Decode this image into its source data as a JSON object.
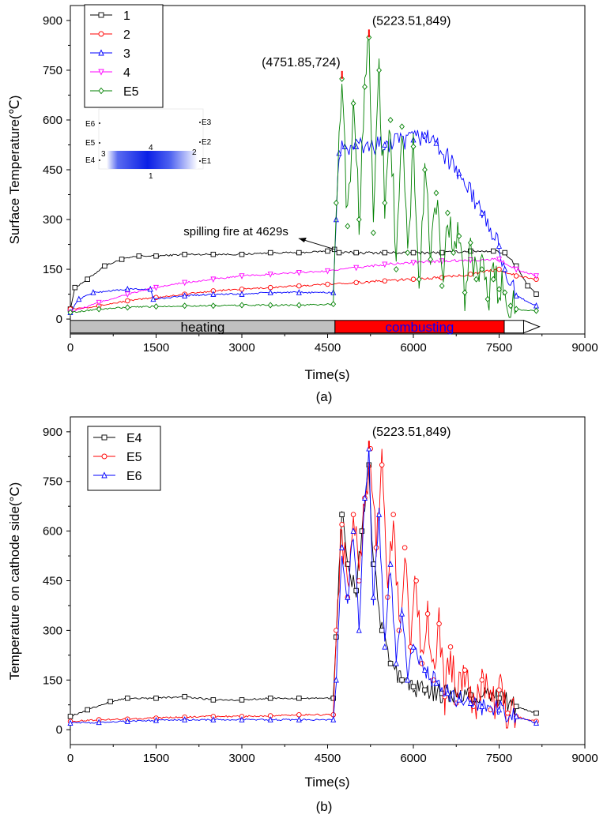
{
  "chart_data": [
    {
      "panel_label": "(a)",
      "type": "line",
      "xlabel": "Time(s)",
      "ylabel": "Surface Temperature(℃)",
      "xlim": [
        0,
        9000
      ],
      "ylim": [
        -45,
        945
      ],
      "xticks": [
        "0",
        "1500",
        "3000",
        "4500",
        "6000",
        "7500",
        "9000"
      ],
      "yticks": [
        "0",
        "150",
        "300",
        "450",
        "600",
        "750",
        "900"
      ],
      "grid": false,
      "legend": "top-left",
      "series": [
        {
          "name": "1",
          "color": "#000000",
          "marker": "square",
          "x": [
            0,
            80,
            300,
            600,
            900,
            1200,
            1500,
            2000,
            2500,
            3000,
            3500,
            4000,
            4500,
            4620,
            4700,
            5000,
            5500,
            6000,
            6500,
            7000,
            7400,
            7600,
            7800,
            8000,
            8150
          ],
          "y": [
            30,
            95,
            120,
            160,
            180,
            190,
            190,
            195,
            195,
            195,
            200,
            200,
            205,
            210,
            200,
            200,
            200,
            200,
            200,
            205,
            205,
            200,
            160,
            100,
            75
          ]
        },
        {
          "name": "2",
          "color": "#ff0000",
          "marker": "circle",
          "x": [
            0,
            500,
            1000,
            1500,
            2000,
            2500,
            3000,
            3500,
            4000,
            4500,
            5000,
            5500,
            6000,
            6500,
            7000,
            7500,
            7800,
            8150
          ],
          "y": [
            30,
            40,
            55,
            65,
            75,
            85,
            90,
            95,
            100,
            105,
            110,
            115,
            120,
            125,
            135,
            150,
            130,
            120
          ]
        },
        {
          "name": "3",
          "color": "#0000ff",
          "marker": "triangle-up",
          "x": [
            0,
            150,
            400,
            1000,
            1400,
            1450,
            2000,
            2500,
            3000,
            3500,
            4000,
            4600,
            4650,
            4700,
            4800,
            5000,
            5500,
            6000,
            6200,
            6400,
            6800,
            7200,
            7500,
            7600,
            7800,
            8150
          ],
          "y": [
            20,
            60,
            80,
            90,
            90,
            60,
            70,
            75,
            75,
            80,
            80,
            80,
            300,
            500,
            520,
            520,
            525,
            540,
            555,
            530,
            440,
            320,
            220,
            150,
            70,
            40
          ]
        },
        {
          "name": "4",
          "color": "#ff00ff",
          "marker": "triangle-down",
          "x": [
            0,
            500,
            1000,
            1500,
            2000,
            2500,
            3000,
            3500,
            4000,
            4500,
            5000,
            5500,
            6000,
            6500,
            7000,
            7500,
            7800,
            8150
          ],
          "y": [
            20,
            50,
            75,
            95,
            110,
            120,
            130,
            135,
            140,
            145,
            155,
            165,
            170,
            175,
            178,
            180,
            150,
            130
          ]
        },
        {
          "name": "E5",
          "color": "#008000",
          "marker": "diamond",
          "x": [
            0,
            500,
            1000,
            1500,
            2000,
            2500,
            3000,
            3500,
            4000,
            4600,
            4650,
            4750,
            4850,
            4950,
            5050,
            5150,
            5223,
            5300,
            5400,
            5500,
            5600,
            5700,
            5800,
            5900,
            6000,
            6100,
            6200,
            6300,
            6400,
            6500,
            6600,
            6700,
            6800,
            6900,
            7000,
            7100,
            7200,
            7300,
            7400,
            7500,
            7600,
            7700,
            7800,
            8150
          ],
          "y": [
            20,
            30,
            35,
            38,
            40,
            40,
            42,
            42,
            42,
            45,
            350,
            724,
            280,
            650,
            300,
            700,
            849,
            260,
            750,
            350,
            600,
            150,
            580,
            200,
            520,
            120,
            450,
            180,
            380,
            100,
            320,
            200,
            250,
            80,
            230,
            120,
            150,
            60,
            120,
            90,
            80,
            40,
            30,
            25
          ]
        }
      ],
      "annotations": [
        {
          "text": "(4751.85,724)",
          "x": 4751.85,
          "y": 724
        },
        {
          "text": "(5223.51,849)",
          "x": 5223.51,
          "y": 849
        },
        {
          "text": "spilling fire at 4629s",
          "x": 4629,
          "y": 205
        }
      ],
      "phase_bar": [
        {
          "label": "heating",
          "start": 0,
          "end": 4629,
          "color": "#c0c0c0",
          "text_color": "#000000"
        },
        {
          "label": "combusting",
          "start": 4629,
          "end": 7590,
          "color": "#ff0000",
          "text_color": "#0000ff"
        },
        {
          "label": "",
          "start": 7590,
          "end": 8150,
          "color": "#ffffff",
          "text_color": "#000000"
        }
      ],
      "inset": {
        "labels": [
          "E6",
          "E5",
          "E4",
          "E3",
          "E2",
          "E1",
          "1",
          "2",
          "3",
          "4"
        ]
      }
    },
    {
      "panel_label": "(b)",
      "type": "line",
      "xlabel": "Time(s)",
      "ylabel": "Temperature on cathode side(°C)",
      "xlim": [
        0,
        9000
      ],
      "ylim": [
        -45,
        945
      ],
      "xticks": [
        "0",
        "1500",
        "3000",
        "4500",
        "6000",
        "7500",
        "9000"
      ],
      "yticks": [
        "0",
        "150",
        "300",
        "450",
        "600",
        "750",
        "900"
      ],
      "grid": false,
      "legend": "top-left",
      "series": [
        {
          "name": "E4",
          "color": "#000000",
          "marker": "square",
          "x": [
            0,
            300,
            700,
            1000,
            1500,
            2000,
            2500,
            3000,
            3500,
            4000,
            4600,
            4650,
            4750,
            4850,
            5000,
            5100,
            5223,
            5300,
            5450,
            5600,
            5800,
            6000,
            6200,
            6500,
            7000,
            7500,
            7800,
            8150
          ],
          "y": [
            40,
            60,
            85,
            95,
            95,
            100,
            90,
            90,
            95,
            95,
            95,
            280,
            650,
            500,
            420,
            600,
            800,
            500,
            300,
            200,
            150,
            130,
            120,
            110,
            105,
            95,
            70,
            50
          ]
        },
        {
          "name": "E5",
          "color": "#ff0000",
          "marker": "circle",
          "x": [
            0,
            500,
            1000,
            1500,
            2000,
            2500,
            3000,
            3500,
            4000,
            4600,
            4650,
            4750,
            4850,
            4950,
            5050,
            5150,
            5250,
            5350,
            5450,
            5550,
            5650,
            5750,
            5850,
            5950,
            6050,
            6150,
            6250,
            6350,
            6450,
            6550,
            6650,
            6750,
            6900,
            7050,
            7200,
            7350,
            7500,
            7650,
            7800,
            8150
          ],
          "y": [
            25,
            30,
            32,
            35,
            38,
            40,
            40,
            42,
            45,
            45,
            300,
            620,
            400,
            650,
            450,
            700,
            849,
            550,
            800,
            400,
            650,
            300,
            550,
            250,
            450,
            200,
            350,
            150,
            320,
            100,
            250,
            80,
            180,
            70,
            150,
            60,
            120,
            50,
            40,
            25
          ]
        },
        {
          "name": "E6",
          "color": "#0000ff",
          "marker": "triangle-up",
          "x": [
            0,
            500,
            1000,
            1500,
            2000,
            2500,
            3000,
            3500,
            4000,
            4600,
            4650,
            4750,
            4850,
            4950,
            5050,
            5150,
            5223,
            5300,
            5400,
            5500,
            5600,
            5700,
            5800,
            5900,
            6000,
            6200,
            6400,
            6600,
            6800,
            7000,
            7200,
            7500,
            7800,
            8150
          ],
          "y": [
            20,
            22,
            25,
            28,
            30,
            30,
            30,
            30,
            30,
            30,
            150,
            550,
            400,
            600,
            300,
            700,
            849,
            400,
            650,
            250,
            500,
            200,
            350,
            150,
            250,
            180,
            140,
            110,
            90,
            80,
            70,
            60,
            40,
            20
          ]
        }
      ],
      "annotations": [
        {
          "text": "(5223.51,849)",
          "x": 5223.51,
          "y": 849
        }
      ]
    }
  ]
}
